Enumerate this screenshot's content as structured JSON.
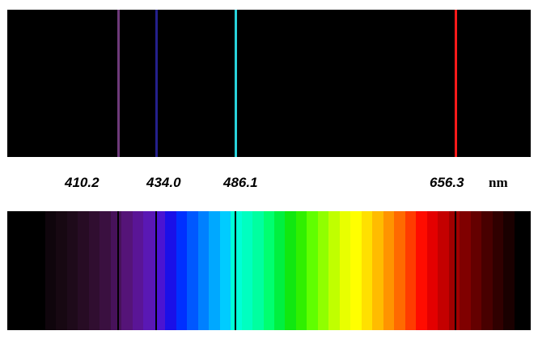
{
  "spectrum": {
    "lines": [
      {
        "wavelength": 410.2,
        "label": "410.2",
        "emission_color": "#6e3a7a"
      },
      {
        "wavelength": 434.0,
        "label": "434.0",
        "emission_color": "#24208c"
      },
      {
        "wavelength": 486.1,
        "label": "486.1",
        "emission_color": "#28d2dc"
      },
      {
        "wavelength": 656.3,
        "label": "656.3",
        "emission_color": "#ff1a1a"
      }
    ],
    "unit": "nm",
    "background_color": "#000000",
    "gradient_stops": [
      "#000000",
      "#000000",
      "#0f050c",
      "#170812",
      "#1e0a1a",
      "#270c24",
      "#300e30",
      "#3a1040",
      "#47125a",
      "#551478",
      "#5a1596",
      "#5a18b4",
      "#4a14d2",
      "#1a10e8",
      "#0030ff",
      "#0058ff",
      "#0080ff",
      "#00a8ff",
      "#00ccff",
      "#00ffd8",
      "#00ffc0",
      "#00ffa0",
      "#00ff70",
      "#00f040",
      "#10e810",
      "#30f000",
      "#60ff00",
      "#90ff00",
      "#c0ff00",
      "#e8ff00",
      "#ffff00",
      "#ffe000",
      "#ffbc00",
      "#ff9400",
      "#ff6a00",
      "#ff3c00",
      "#ff0c00",
      "#e40000",
      "#c40000",
      "#a00000",
      "#800000",
      "#640000",
      "#480000",
      "#300000",
      "#1a0000",
      "#000000"
    ]
  }
}
